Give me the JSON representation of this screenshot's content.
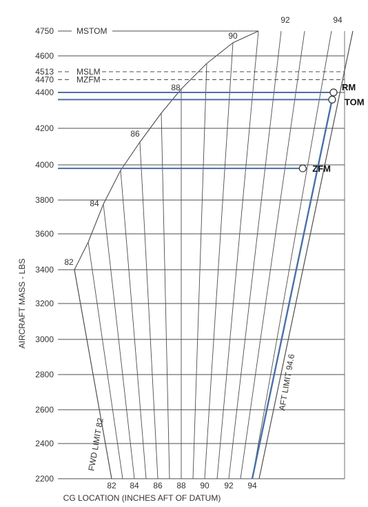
{
  "chart_data": {
    "type": "line",
    "title": "",
    "xlabel": "CG LOCATION (INCHES AFT OF DATUM)",
    "ylabel": "AIRCRAFT MASS - LBS",
    "ylim": [
      2200,
      4750
    ],
    "y_ticks": [
      "2200",
      "2400",
      "2600",
      "2800",
      "3000",
      "3200",
      "3400",
      "3600",
      "3800",
      "4000",
      "4200",
      "4400",
      "4470",
      "4513",
      "4600",
      "4750"
    ],
    "x_ticks_bottom": [
      "82",
      "84",
      "86",
      "88",
      "90",
      "92",
      "94"
    ],
    "x_ticks_top": [
      "92",
      "94"
    ],
    "envelope_curve_labels": [
      "82",
      "84",
      "86",
      "88",
      "90"
    ],
    "limit_lines": [
      {
        "name": "MSTOM",
        "mass": 4750,
        "style": "solid"
      },
      {
        "name": "MSLM",
        "mass": 4513,
        "style": "dashed"
      },
      {
        "name": "MZFM",
        "mass": 4470,
        "style": "dashed"
      }
    ],
    "boundary_labels": {
      "fwd": "FWD LIMIT 82",
      "aft": "AFT LIMIT 94.6"
    },
    "grid": true,
    "points": [
      {
        "name": "RM",
        "mass": 4400,
        "cg": 94.4
      },
      {
        "name": "TOM",
        "mass": 4360,
        "cg": 94.4
      },
      {
        "name": "ZFM",
        "mass": 3980,
        "cg": 93.8
      }
    ],
    "series": [
      {
        "values": [
          [
            94.0,
            2200
          ],
          [
            94.4,
            4360
          ]
        ],
        "color": "#4a6fa8"
      },
      {
        "values": [
          [
            94.4,
            4360
          ],
          [
            94.4,
            4400
          ]
        ],
        "color": "#4a6fa8"
      }
    ],
    "colors": {
      "grid": "#4d4d4d",
      "loading": "#4a6fa8"
    }
  }
}
